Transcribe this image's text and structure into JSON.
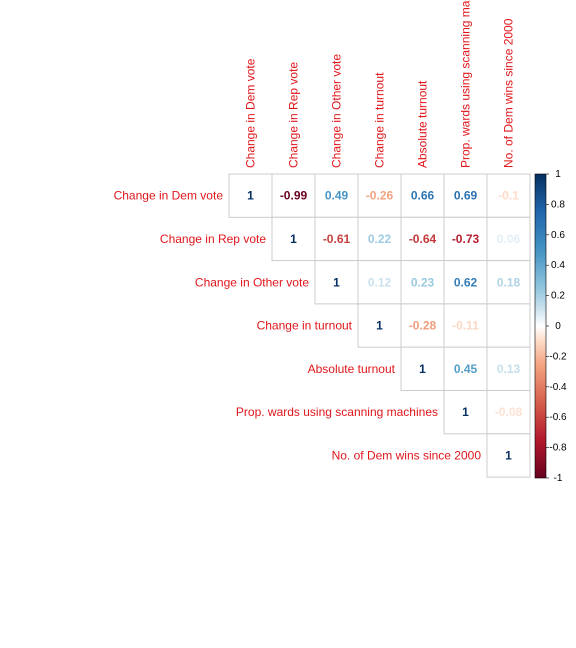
{
  "chart_data": {
    "type": "heatmap",
    "variables": [
      "Change in Dem vote",
      "Change in Rep vote",
      "Change in Other vote",
      "Change in turnout",
      "Absolute turnout",
      "Prop. wards using scanning machines",
      "No. of Dem wins since 2000"
    ],
    "column_labels": [
      "Change in Dem vote",
      "Change in Rep vote",
      "Change in Other vote",
      "Change in turnout",
      "Absolute turnout",
      "Prop. wards using scanning ma",
      "No. of Dem wins since 2000"
    ],
    "matrix": [
      [
        1,
        -0.99,
        0.49,
        -0.26,
        0.66,
        0.69,
        -0.1
      ],
      [
        null,
        1,
        -0.61,
        0.22,
        -0.64,
        -0.73,
        0.06
      ],
      [
        null,
        null,
        1,
        0.12,
        0.23,
        0.62,
        0.18
      ],
      [
        null,
        null,
        null,
        1,
        -0.28,
        -0.11,
        0
      ],
      [
        null,
        null,
        null,
        null,
        1,
        0.45,
        0.13
      ],
      [
        null,
        null,
        null,
        null,
        null,
        1,
        -0.08
      ],
      [
        null,
        null,
        null,
        null,
        null,
        null,
        1
      ]
    ],
    "value_labels": [
      [
        "1",
        "-0.99",
        "0.49",
        "-0.26",
        "0.66",
        "0.69",
        "-0.1"
      ],
      [
        "",
        "1",
        "-0.61",
        "0.22",
        "-0.64",
        "-0.73",
        "0.06"
      ],
      [
        "",
        "",
        "1",
        "0.12",
        "0.23",
        "0.62",
        "0.18"
      ],
      [
        "",
        "",
        "",
        "1",
        "-0.28",
        "-0.11",
        ""
      ],
      [
        "",
        "",
        "",
        "",
        "1",
        "0.45",
        "0.13"
      ],
      [
        "",
        "",
        "",
        "",
        "",
        "1",
        "-0.08"
      ],
      [
        "",
        "",
        "",
        "",
        "",
        "",
        "1"
      ]
    ],
    "layout": "upper-triangle",
    "color_scale": {
      "range": [
        -1,
        1
      ],
      "ticks": [
        "1",
        "0.8",
        "0.6",
        "0.4",
        "0.2",
        "0",
        "-0.2",
        "-0.4",
        "-0.6",
        "-0.8",
        "-1"
      ],
      "stops": [
        {
          "value": -1,
          "color": "#67001f"
        },
        {
          "value": -0.75,
          "color": "#b2182b"
        },
        {
          "value": -0.5,
          "color": "#d6604d"
        },
        {
          "value": -0.25,
          "color": "#f4a582"
        },
        {
          "value": -0.1,
          "color": "#fddbc7"
        },
        {
          "value": 0,
          "color": "#ffffff"
        },
        {
          "value": 0.1,
          "color": "#d1e5f0"
        },
        {
          "value": 0.25,
          "color": "#92c5de"
        },
        {
          "value": 0.5,
          "color": "#4393c3"
        },
        {
          "value": 0.75,
          "color": "#2166ac"
        },
        {
          "value": 1,
          "color": "#053061"
        }
      ]
    },
    "label_color": "#e0161b",
    "legend_position": "right"
  }
}
